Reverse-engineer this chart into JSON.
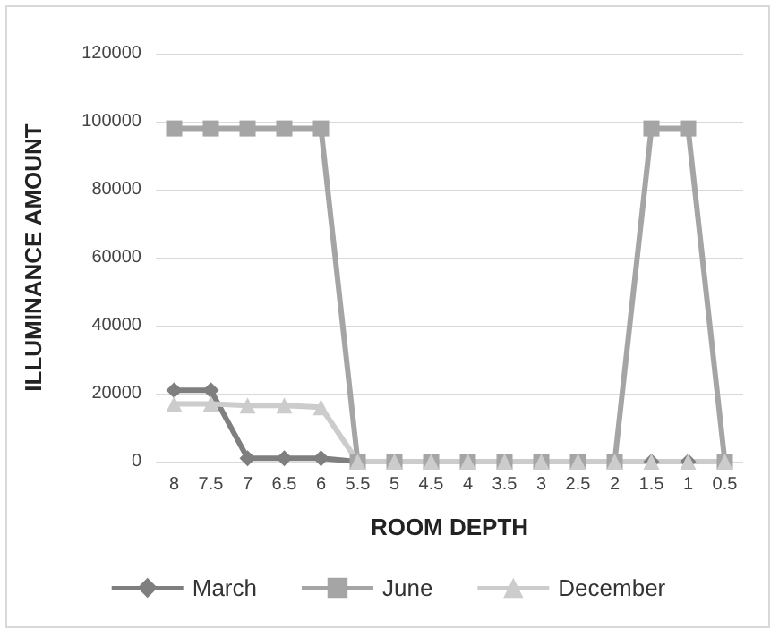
{
  "chart_data": {
    "type": "line",
    "xlabel": "ROOM DEPTH",
    "ylabel": "ILLUMINANCE AMOUNT",
    "categories": [
      "8",
      "7.5",
      "7",
      "6.5",
      "6",
      "5.5",
      "5",
      "4.5",
      "4",
      "3.5",
      "3",
      "2.5",
      "2",
      "1.5",
      "1",
      "0.5"
    ],
    "series": [
      {
        "name": "March",
        "color": "#7f7f7f",
        "marker": "diamond",
        "values": [
          21000,
          21000,
          1000,
          1000,
          1000,
          0,
          0,
          0,
          0,
          0,
          0,
          0,
          0,
          0,
          0,
          0
        ]
      },
      {
        "name": "June",
        "color": "#a5a5a5",
        "marker": "square",
        "values": [
          98000,
          98000,
          98000,
          98000,
          98000,
          0,
          0,
          0,
          0,
          0,
          0,
          0,
          0,
          98000,
          98000,
          0
        ]
      },
      {
        "name": "December",
        "color": "#cccccc",
        "marker": "triangle",
        "values": [
          17000,
          17000,
          16500,
          16500,
          16000,
          0,
          0,
          0,
          0,
          0,
          0,
          0,
          0,
          0,
          0,
          0
        ]
      }
    ],
    "ylim": [
      0,
      120000
    ],
    "yticks": [
      0,
      20000,
      40000,
      60000,
      80000,
      100000,
      120000
    ],
    "grid": "y",
    "legend": "bottom",
    "line_style": "solid"
  }
}
